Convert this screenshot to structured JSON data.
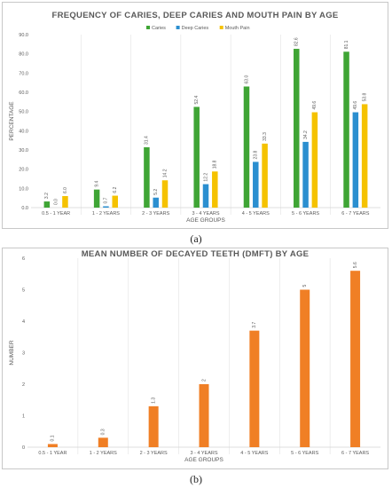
{
  "panel_a": {
    "caption": "(a)",
    "chart_data": {
      "type": "bar",
      "title": "FREQUENCY OF CARIES, DEEP CARIES AND MOUTH PAIN BY AGE",
      "xlabel": "AGE GROUPS",
      "ylabel": "PERCENTAGE",
      "ylim": [
        0,
        90
      ],
      "yticks": [
        "0.0",
        "10.0",
        "20.0",
        "30.0",
        "40.0",
        "50.0",
        "60.0",
        "70.0",
        "80.0",
        "90.0"
      ],
      "grid": "vertical separators",
      "legend_position": "top",
      "categories": [
        "0.5 - 1 YEAR",
        "1 - 2 YEARS",
        "2 - 3 YEARS",
        "3 - 4 YEARS",
        "4 - 5 YEARS",
        "5 - 6 YEARS",
        "6 - 7 YEARS"
      ],
      "series": [
        {
          "name": "Caries",
          "color": "#3fa535",
          "values": [
            3.2,
            9.4,
            31.4,
            52.4,
            63.0,
            82.6,
            81.1
          ],
          "labels": [
            "3.2",
            "9.4",
            "31.4",
            "52.4",
            "63.0",
            "82.6",
            "81.1"
          ]
        },
        {
          "name": "Deep Caries",
          "color": "#2b8fd0",
          "values": [
            0.0,
            0.7,
            5.2,
            12.2,
            23.8,
            34.2,
            49.6
          ],
          "labels": [
            "0.0",
            "0.7",
            "5.2",
            "12.2",
            "23.8",
            "34.2",
            "49.6"
          ]
        },
        {
          "name": "Mouth Pain",
          "color": "#f5c200",
          "values": [
            6.0,
            6.2,
            14.2,
            18.8,
            33.3,
            49.6,
            53.8
          ],
          "labels": [
            "6.0",
            "6.2",
            "14.2",
            "18.8",
            "33.3",
            "49.6",
            "53.8"
          ]
        }
      ]
    }
  },
  "panel_b": {
    "caption": "(b)",
    "chart_data": {
      "type": "bar",
      "title": "MEAN NUMBER OF DECAYED TEETH (DMFT) BY AGE",
      "xlabel": "AGE GROUPS",
      "ylabel": "NUMBER",
      "ylim": [
        0,
        6
      ],
      "yticks": [
        "0",
        "1",
        "2",
        "3",
        "4",
        "5",
        "6"
      ],
      "grid": "vertical separators",
      "categories": [
        "0.5 - 1 YEAR",
        "1 - 2 YEARS",
        "2 - 3 YEARS",
        "3 - 4 YEARS",
        "4 - 5 YEARS",
        "5 - 6 YEARS",
        "6 - 7 YEARS"
      ],
      "series": [
        {
          "color": "#f07f25",
          "values": [
            0.1,
            0.3,
            1.3,
            2.0,
            3.7,
            5.0,
            5.6
          ],
          "labels": [
            "0.1",
            "0.3",
            "1.3",
            "2",
            "3.7",
            "5",
            "5.6"
          ]
        }
      ]
    }
  }
}
